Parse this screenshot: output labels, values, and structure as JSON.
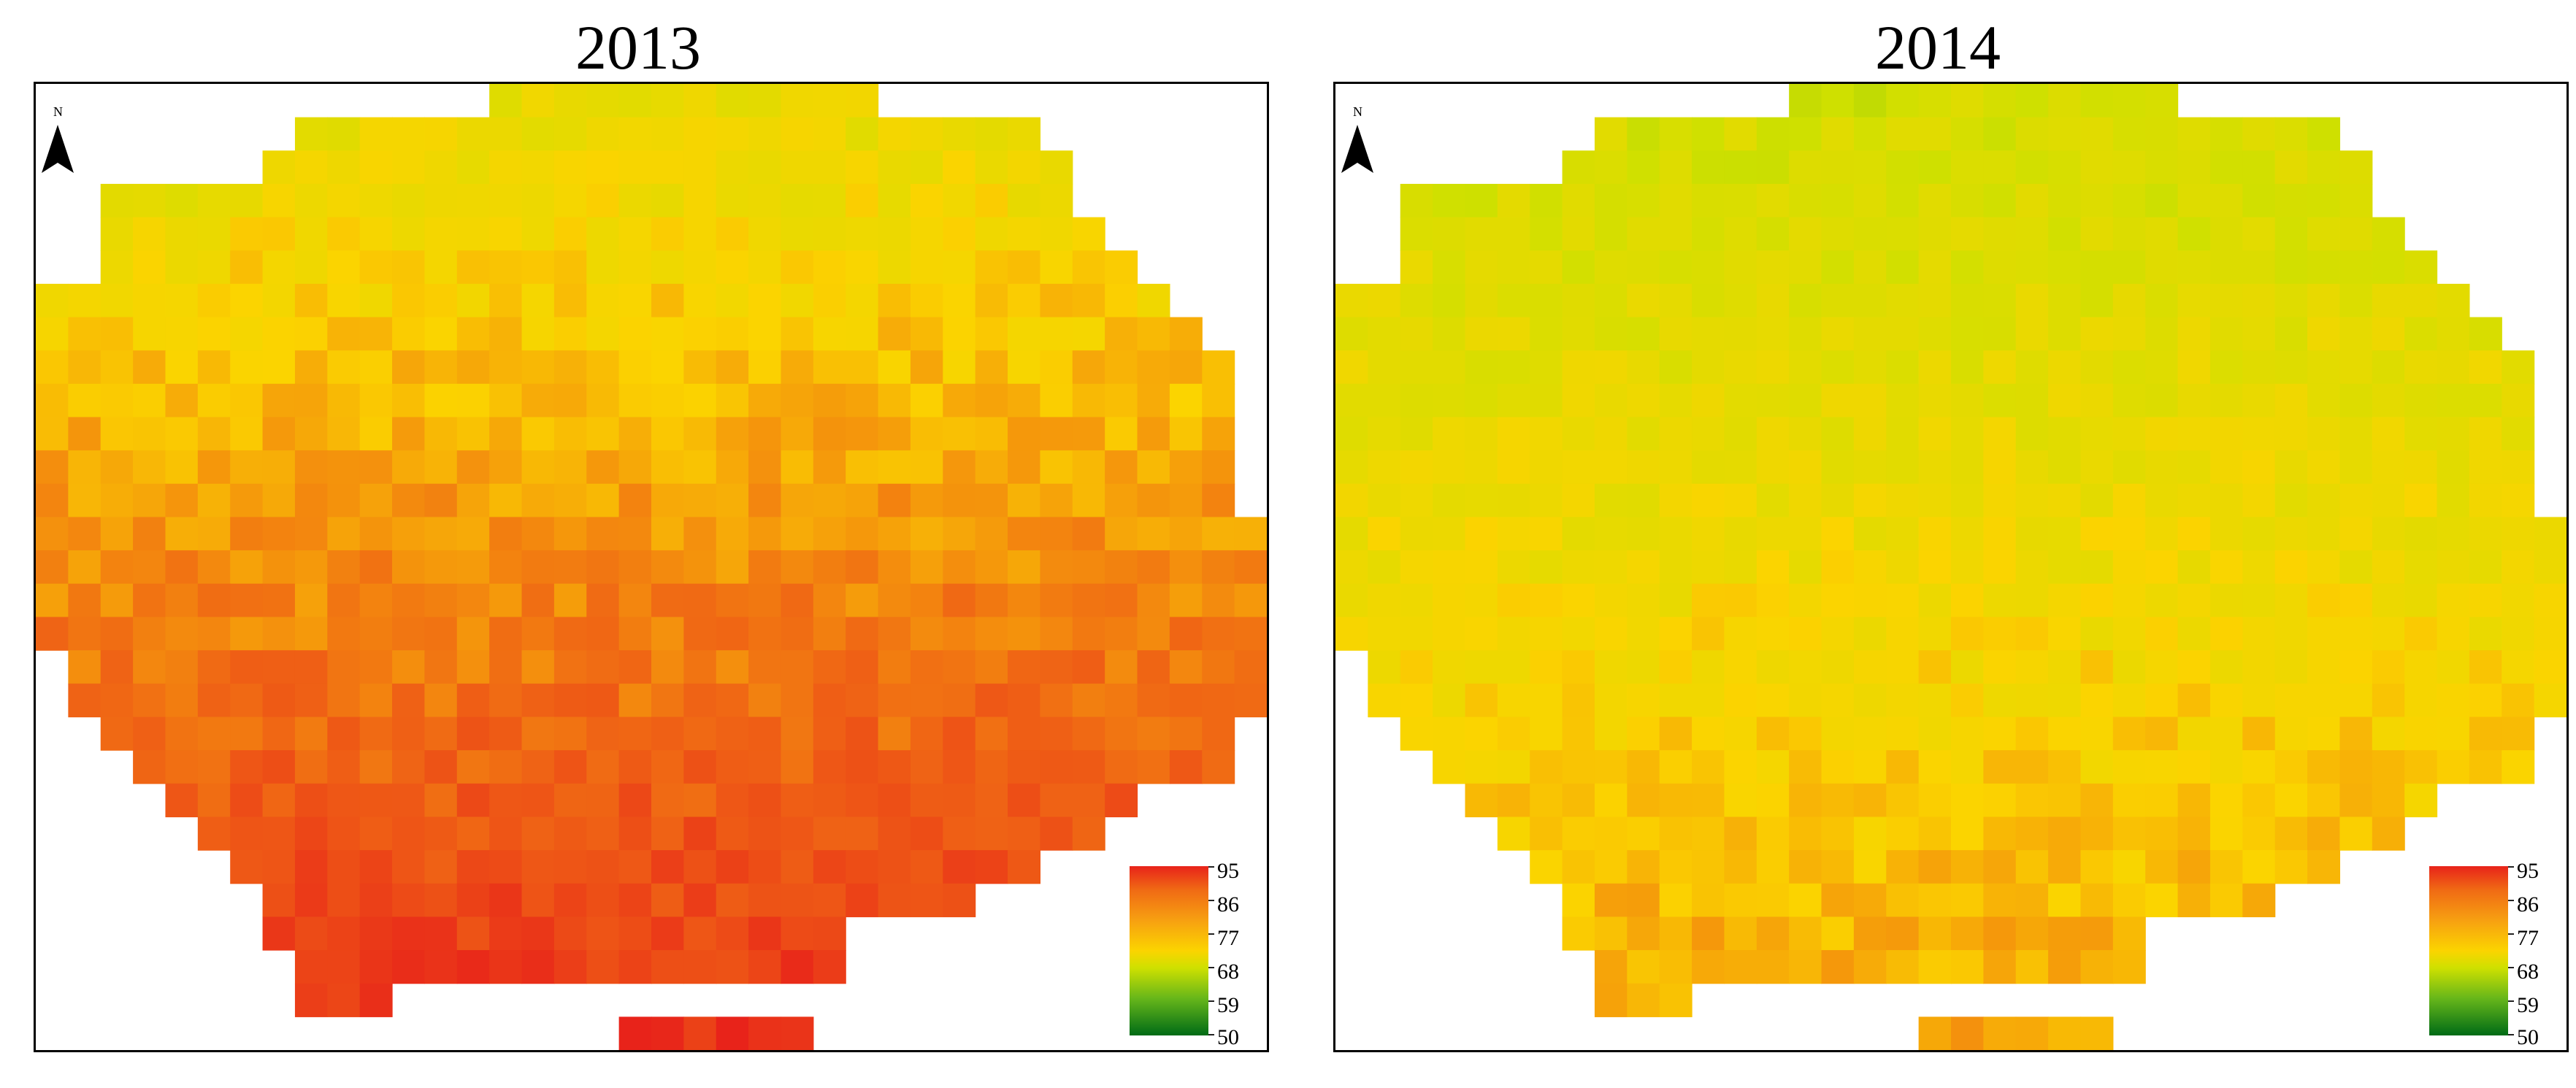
{
  "panels": [
    {
      "title": "2013",
      "north_label": "N",
      "legend": {
        "max": 95,
        "min": 50,
        "labels": [
          "95",
          "86",
          "77",
          "68",
          "59",
          "50"
        ]
      },
      "mean_value_estimate": 82,
      "gradient": "values increase from north (~72) to south (~93)",
      "colors": {
        "low": "#006b16",
        "mid": "#fbd400",
        "high": "#e8231a"
      }
    },
    {
      "title": "2014",
      "north_label": "N",
      "legend": {
        "max": 95,
        "min": 50,
        "labels": [
          "95",
          "86",
          "77",
          "68",
          "59",
          "50"
        ]
      },
      "mean_value_estimate": 77,
      "gradient": "values increase from north (~70) to south (~81)",
      "colors": {
        "low": "#006b16",
        "mid": "#fbd400",
        "high": "#e8231a"
      }
    }
  ]
}
